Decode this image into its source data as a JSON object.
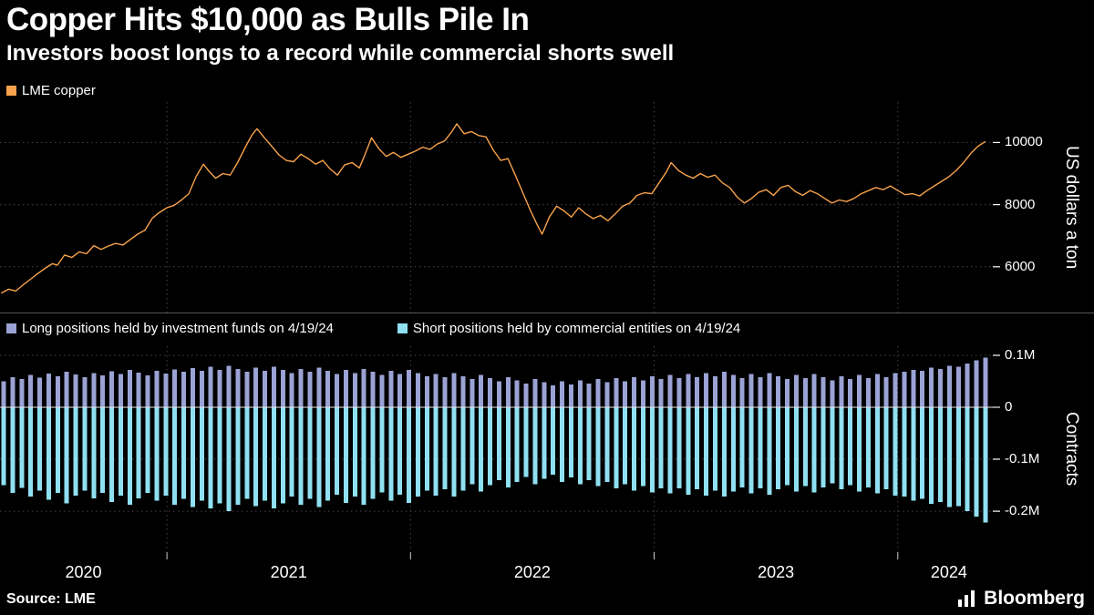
{
  "header": {
    "title": "Copper Hits $10,000 as Bulls Pile In",
    "subtitle": "Investors boost longs to a record while commercial shorts swell"
  },
  "footer": {
    "source": "Source: LME",
    "brand": "Bloomberg"
  },
  "colors": {
    "background": "#000000",
    "text": "#ffffff",
    "grid": "#454545",
    "copper_line": "#F7A24C",
    "long_bars": "#9BA2D4",
    "short_bars": "#8FE0F1",
    "zero_line": "#e8e8e8"
  },
  "chart_data": [
    {
      "type": "line",
      "panel": "top",
      "legend": [
        {
          "label": "LME copper",
          "color": "#F7A24C"
        }
      ],
      "color": "#F7A24C",
      "ylabel": "US dollars a ton",
      "yticks": [
        {
          "label": "10000",
          "value": 10000
        },
        {
          "label": "8000",
          "value": 8000
        },
        {
          "label": "6000",
          "value": 6000
        }
      ],
      "ylim": [
        4500,
        11300
      ],
      "xlim": [
        2020.315,
        2024.42
      ],
      "x_gridlines": [
        2021,
        2022,
        2023,
        2024
      ],
      "xticks": [
        "2020",
        "2021",
        "2022",
        "2023",
        "2024"
      ],
      "grid": "dotted",
      "points": [
        [
          2020.32,
          5150
        ],
        [
          2020.35,
          5280
        ],
        [
          2020.38,
          5220
        ],
        [
          2020.41,
          5420
        ],
        [
          2020.44,
          5600
        ],
        [
          2020.47,
          5780
        ],
        [
          2020.5,
          5950
        ],
        [
          2020.53,
          6100
        ],
        [
          2020.55,
          6050
        ],
        [
          2020.58,
          6380
        ],
        [
          2020.61,
          6300
        ],
        [
          2020.64,
          6480
        ],
        [
          2020.67,
          6420
        ],
        [
          2020.7,
          6680
        ],
        [
          2020.73,
          6560
        ],
        [
          2020.76,
          6670
        ],
        [
          2020.79,
          6750
        ],
        [
          2020.82,
          6700
        ],
        [
          2020.85,
          6880
        ],
        [
          2020.88,
          7050
        ],
        [
          2020.91,
          7180
        ],
        [
          2020.94,
          7560
        ],
        [
          2020.97,
          7750
        ],
        [
          2021.0,
          7900
        ],
        [
          2021.03,
          7980
        ],
        [
          2021.06,
          8150
        ],
        [
          2021.09,
          8350
        ],
        [
          2021.12,
          8900
        ],
        [
          2021.15,
          9300
        ],
        [
          2021.17,
          9100
        ],
        [
          2021.2,
          8850
        ],
        [
          2021.23,
          9000
        ],
        [
          2021.26,
          8950
        ],
        [
          2021.29,
          9350
        ],
        [
          2021.32,
          9820
        ],
        [
          2021.35,
          10250
        ],
        [
          2021.37,
          10440
        ],
        [
          2021.4,
          10150
        ],
        [
          2021.43,
          9880
        ],
        [
          2021.46,
          9600
        ],
        [
          2021.49,
          9420
        ],
        [
          2021.52,
          9380
        ],
        [
          2021.55,
          9620
        ],
        [
          2021.58,
          9480
        ],
        [
          2021.61,
          9300
        ],
        [
          2021.64,
          9420
        ],
        [
          2021.67,
          9150
        ],
        [
          2021.7,
          8950
        ],
        [
          2021.73,
          9280
        ],
        [
          2021.76,
          9350
        ],
        [
          2021.79,
          9180
        ],
        [
          2021.81,
          9550
        ],
        [
          2021.84,
          10150
        ],
        [
          2021.87,
          9800
        ],
        [
          2021.9,
          9550
        ],
        [
          2021.93,
          9680
        ],
        [
          2021.96,
          9520
        ],
        [
          2021.99,
          9620
        ],
        [
          2022.02,
          9720
        ],
        [
          2022.05,
          9850
        ],
        [
          2022.08,
          9780
        ],
        [
          2022.11,
          9950
        ],
        [
          2022.14,
          10050
        ],
        [
          2022.17,
          10350
        ],
        [
          2022.19,
          10600
        ],
        [
          2022.22,
          10280
        ],
        [
          2022.25,
          10350
        ],
        [
          2022.28,
          10220
        ],
        [
          2022.31,
          10180
        ],
        [
          2022.34,
          9750
        ],
        [
          2022.37,
          9420
        ],
        [
          2022.4,
          9480
        ],
        [
          2022.43,
          8950
        ],
        [
          2022.46,
          8400
        ],
        [
          2022.49,
          7850
        ],
        [
          2022.52,
          7350
        ],
        [
          2022.54,
          7050
        ],
        [
          2022.57,
          7600
        ],
        [
          2022.6,
          7950
        ],
        [
          2022.63,
          7800
        ],
        [
          2022.66,
          7600
        ],
        [
          2022.69,
          7900
        ],
        [
          2022.72,
          7700
        ],
        [
          2022.75,
          7550
        ],
        [
          2022.78,
          7650
        ],
        [
          2022.81,
          7480
        ],
        [
          2022.84,
          7700
        ],
        [
          2022.87,
          7950
        ],
        [
          2022.9,
          8050
        ],
        [
          2022.93,
          8300
        ],
        [
          2022.96,
          8380
        ],
        [
          2022.99,
          8350
        ],
        [
          2023.02,
          8700
        ],
        [
          2023.05,
          9050
        ],
        [
          2023.07,
          9350
        ],
        [
          2023.1,
          9100
        ],
        [
          2023.13,
          8950
        ],
        [
          2023.16,
          8850
        ],
        [
          2023.19,
          9000
        ],
        [
          2023.22,
          8880
        ],
        [
          2023.25,
          8950
        ],
        [
          2023.28,
          8700
        ],
        [
          2023.31,
          8550
        ],
        [
          2023.34,
          8250
        ],
        [
          2023.37,
          8050
        ],
        [
          2023.4,
          8200
        ],
        [
          2023.43,
          8400
        ],
        [
          2023.46,
          8480
        ],
        [
          2023.49,
          8300
        ],
        [
          2023.52,
          8550
        ],
        [
          2023.55,
          8620
        ],
        [
          2023.58,
          8420
        ],
        [
          2023.61,
          8300
        ],
        [
          2023.64,
          8450
        ],
        [
          2023.67,
          8350
        ],
        [
          2023.7,
          8200
        ],
        [
          2023.73,
          8050
        ],
        [
          2023.76,
          8150
        ],
        [
          2023.79,
          8100
        ],
        [
          2023.82,
          8200
        ],
        [
          2023.85,
          8350
        ],
        [
          2023.88,
          8450
        ],
        [
          2023.91,
          8550
        ],
        [
          2023.94,
          8480
        ],
        [
          2023.97,
          8600
        ],
        [
          2024.0,
          8450
        ],
        [
          2024.03,
          8320
        ],
        [
          2024.06,
          8350
        ],
        [
          2024.09,
          8280
        ],
        [
          2024.12,
          8450
        ],
        [
          2024.15,
          8600
        ],
        [
          2024.18,
          8750
        ],
        [
          2024.21,
          8900
        ],
        [
          2024.24,
          9100
        ],
        [
          2024.27,
          9350
        ],
        [
          2024.3,
          9650
        ],
        [
          2024.33,
          9880
        ],
        [
          2024.36,
          10030
        ]
      ]
    },
    {
      "type": "bar",
      "panel": "bottom",
      "ylabel": "Contracts",
      "yticks": [
        {
          "label": "0.1M",
          "value": 0.1
        },
        {
          "label": "0",
          "value": 0
        },
        {
          "label": "-0.1M",
          "value": -0.1
        },
        {
          "label": "-0.2M",
          "value": -0.2
        }
      ],
      "ylim": [
        -0.277,
        0.1175
      ],
      "x_start": 2020.33,
      "x_step": 0.03697,
      "series": [
        {
          "name": "Long positions held by investment funds on 4/19/24",
          "color": "#9BA2D4",
          "values": [
            0.05,
            0.058,
            0.054,
            0.062,
            0.057,
            0.065,
            0.06,
            0.068,
            0.063,
            0.058,
            0.066,
            0.061,
            0.069,
            0.064,
            0.072,
            0.067,
            0.061,
            0.07,
            0.065,
            0.073,
            0.068,
            0.075,
            0.07,
            0.078,
            0.072,
            0.08,
            0.074,
            0.068,
            0.076,
            0.07,
            0.078,
            0.072,
            0.066,
            0.074,
            0.068,
            0.076,
            0.07,
            0.064,
            0.072,
            0.066,
            0.074,
            0.068,
            0.062,
            0.07,
            0.064,
            0.072,
            0.066,
            0.06,
            0.064,
            0.058,
            0.066,
            0.06,
            0.054,
            0.062,
            0.056,
            0.05,
            0.058,
            0.052,
            0.046,
            0.054,
            0.048,
            0.042,
            0.05,
            0.044,
            0.052,
            0.046,
            0.054,
            0.048,
            0.056,
            0.05,
            0.058,
            0.052,
            0.06,
            0.054,
            0.062,
            0.056,
            0.064,
            0.058,
            0.066,
            0.06,
            0.068,
            0.062,
            0.056,
            0.064,
            0.058,
            0.066,
            0.06,
            0.054,
            0.062,
            0.056,
            0.064,
            0.058,
            0.052,
            0.06,
            0.054,
            0.062,
            0.056,
            0.064,
            0.058,
            0.066,
            0.068,
            0.072,
            0.07,
            0.076,
            0.074,
            0.08,
            0.078,
            0.084,
            0.09,
            0.096
          ]
        },
        {
          "name": "Short positions held by commercial entities on 4/19/24",
          "color": "#8FE0F1",
          "values": [
            -0.15,
            -0.165,
            -0.155,
            -0.172,
            -0.16,
            -0.178,
            -0.165,
            -0.185,
            -0.17,
            -0.16,
            -0.175,
            -0.165,
            -0.182,
            -0.17,
            -0.188,
            -0.175,
            -0.165,
            -0.18,
            -0.17,
            -0.188,
            -0.176,
            -0.192,
            -0.18,
            -0.195,
            -0.185,
            -0.2,
            -0.188,
            -0.176,
            -0.19,
            -0.18,
            -0.195,
            -0.185,
            -0.172,
            -0.188,
            -0.176,
            -0.192,
            -0.18,
            -0.168,
            -0.184,
            -0.172,
            -0.188,
            -0.176,
            -0.164,
            -0.18,
            -0.168,
            -0.184,
            -0.172,
            -0.16,
            -0.17,
            -0.158,
            -0.172,
            -0.16,
            -0.148,
            -0.162,
            -0.15,
            -0.14,
            -0.154,
            -0.144,
            -0.134,
            -0.148,
            -0.138,
            -0.13,
            -0.144,
            -0.135,
            -0.148,
            -0.14,
            -0.152,
            -0.144,
            -0.156,
            -0.148,
            -0.16,
            -0.152,
            -0.164,
            -0.156,
            -0.166,
            -0.156,
            -0.168,
            -0.158,
            -0.17,
            -0.16,
            -0.172,
            -0.162,
            -0.154,
            -0.166,
            -0.156,
            -0.168,
            -0.158,
            -0.15,
            -0.162,
            -0.152,
            -0.164,
            -0.154,
            -0.146,
            -0.158,
            -0.15,
            -0.162,
            -0.154,
            -0.166,
            -0.158,
            -0.17,
            -0.172,
            -0.18,
            -0.176,
            -0.186,
            -0.182,
            -0.192,
            -0.19,
            -0.2,
            -0.21,
            -0.222
          ]
        }
      ]
    }
  ]
}
